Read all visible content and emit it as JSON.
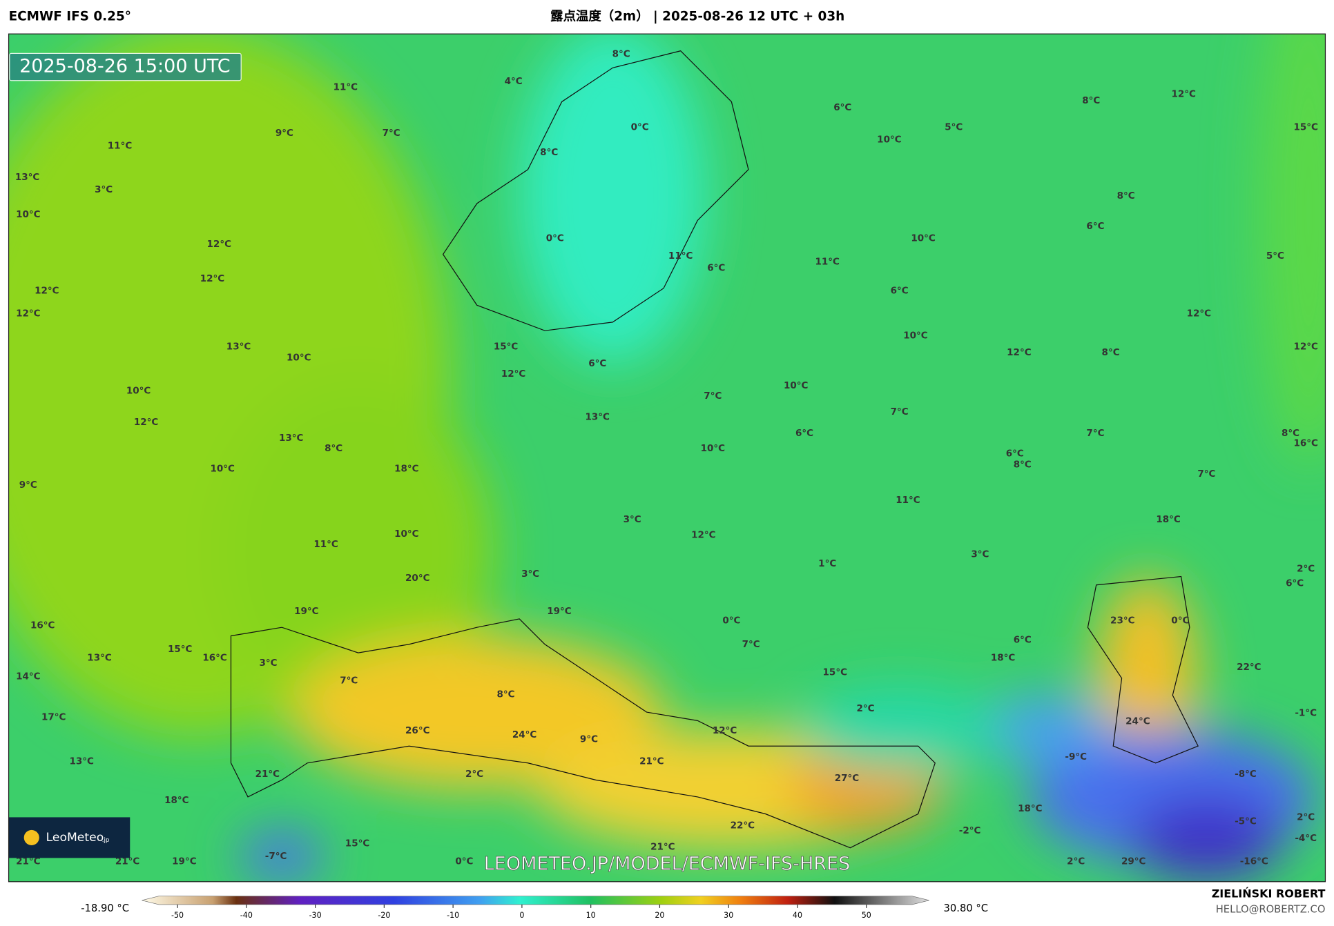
{
  "header": {
    "model": "ECMWF IFS 0.25°",
    "title": "露点温度（2m） | 2025-08-26 12 UTC + 03h"
  },
  "map": {
    "timestamp": "2025-08-26 15:00 UTC",
    "watermark": "LEOMETEO.JP/MODEL/ECMWF-IFS-HRES",
    "logo": {
      "name": "LeoMeteo",
      "suffix": ".jp"
    },
    "labels": [
      "11°C",
      "4°C",
      "8°C",
      "0°C",
      "9°C",
      "7°C",
      "11°C",
      "13°C",
      "3°C",
      "10°C",
      "8°C",
      "6°C",
      "5°C",
      "10°C",
      "8°C",
      "12°C",
      "15°C",
      "8°C",
      "6°C",
      "10°C",
      "5°C",
      "12°C",
      "12°C",
      "12°C",
      "12°C",
      "0°C",
      "11°C",
      "6°C",
      "11°C",
      "6°C",
      "12°C",
      "10°C",
      "12°C",
      "8°C",
      "12°C",
      "13°C",
      "10°C",
      "15°C",
      "12°C",
      "6°C",
      "10°C",
      "12°C",
      "10°C",
      "7°C",
      "7°C",
      "13°C",
      "13°C",
      "8°C",
      "6°C",
      "7°C",
      "8°C",
      "16°C",
      "10°C",
      "10°C",
      "18°C",
      "6°C",
      "8°C",
      "9°C",
      "7°C",
      "11°C",
      "3°C",
      "18°C",
      "11°C",
      "10°C",
      "12°C",
      "1°C",
      "3°C",
      "20°C",
      "3°C",
      "2°C",
      "6°C",
      "19°C",
      "19°C",
      "16°C",
      "0°C",
      "23°C",
      "0°C",
      "15°C",
      "13°C",
      "16°C",
      "3°C",
      "7°C",
      "6°C",
      "18°C",
      "15°C",
      "22°C",
      "14°C",
      "7°C",
      "8°C",
      "2°C",
      "17°C",
      "-1°C",
      "24°C",
      "26°C",
      "24°C",
      "12°C",
      "9°C",
      "13°C",
      "21°C",
      "-9°C",
      "21°C",
      "2°C",
      "27°C",
      "-8°C",
      "18°C",
      "18°C",
      "2°C",
      "-5°C",
      "22°C",
      "-2°C",
      "-4°C",
      "15°C",
      "21°C",
      "-7°C",
      "21°C",
      "21°C",
      "19°C",
      "0°C",
      "2°C",
      "29°C",
      "-16°C"
    ]
  },
  "colorbar": {
    "min_label": "-18.90 °C",
    "max_label": "30.80 °C",
    "ticks": [
      -50,
      -40,
      -30,
      -20,
      -10,
      0,
      10,
      20,
      30,
      40,
      50
    ]
  },
  "credits": {
    "author": "ZIELIŃSKI ROBERT",
    "contact": "HELLO@ROBERTZ.CO"
  }
}
